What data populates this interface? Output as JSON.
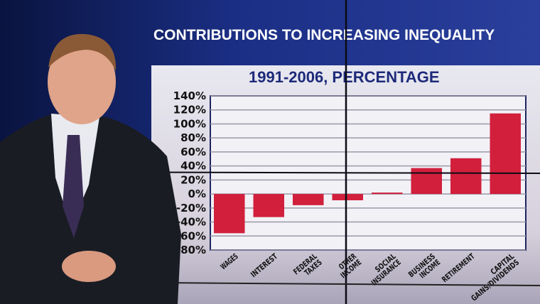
{
  "broadcast": {
    "title": "CONTRIBUTIONS TO INCREASING INEQUALITY"
  },
  "chart_data": {
    "type": "bar",
    "title": "1991-2006, PERCENTAGE",
    "categories": [
      "WAGES",
      "INTEREST",
      "FEDERAL TAXES",
      "OTHER INCOME",
      "SOCIAL INSURANCE",
      "BUSINESS INCOME",
      "RETIREMENT",
      "CAPITAL GAINS/DIVIDENDS"
    ],
    "values": [
      -56,
      -33,
      -16,
      -9,
      2,
      37,
      51,
      115
    ],
    "yticks": [
      "140%",
      "120%",
      "100%",
      "80%",
      "60%",
      "40%",
      "20%",
      "0%",
      "-20%",
      "-40%",
      "-60%",
      "-80%"
    ],
    "ylim": [
      -80,
      140
    ],
    "grid": true,
    "bar_color": "#d11f3c"
  }
}
